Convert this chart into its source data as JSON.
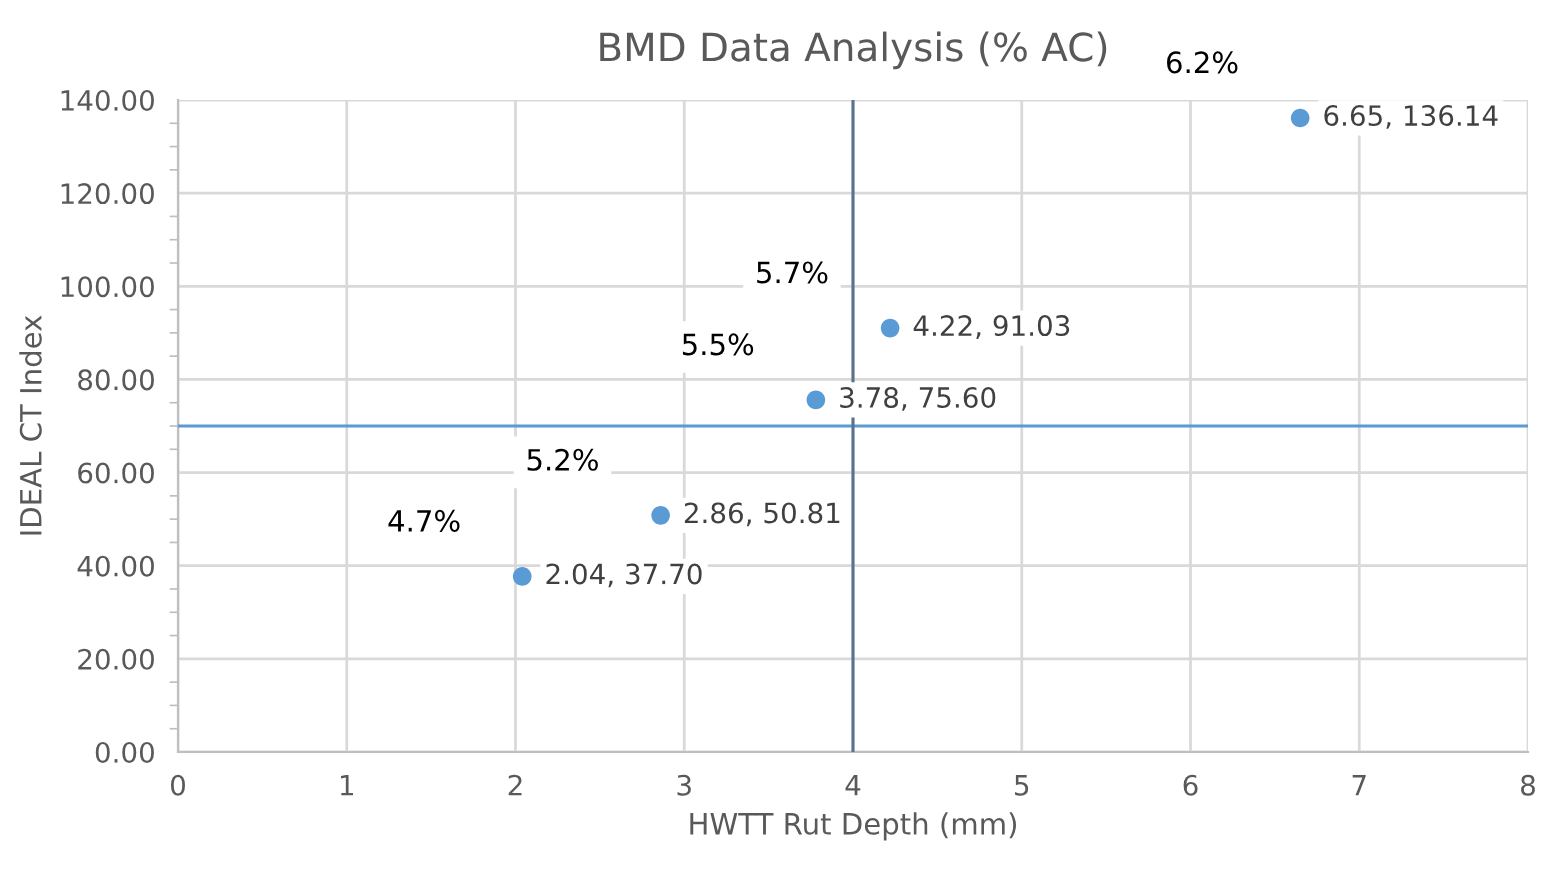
{
  "chart_data": {
    "type": "scatter",
    "title": "BMD Data Analysis (% AC)",
    "xlabel": "HWTT Rut Depth (mm)",
    "ylabel": "IDEAL CT Index",
    "x": [
      2.04,
      2.86,
      3.78,
      4.22,
      6.65
    ],
    "series": [
      {
        "color": "#5b9bd5",
        "values": [
          37.7,
          50.81,
          75.6,
          91.03,
          136.14
        ],
        "value_labels": [
          "2.04, 37.70",
          "2.86, 50.81",
          "3.78, 75.60",
          "4.22, 91.03",
          "6.65, 136.14"
        ]
      }
    ],
    "marker": "circle",
    "xlim": [
      0,
      8
    ],
    "xticks": [
      0,
      1,
      2,
      3,
      4,
      5,
      6,
      7,
      8
    ],
    "ylim": [
      0,
      140
    ],
    "yticks": [
      {
        "value": 0,
        "label": "0.00"
      },
      {
        "value": 20,
        "label": "20.00"
      },
      {
        "value": 40,
        "label": "40.00"
      },
      {
        "value": 60,
        "label": "60.00"
      },
      {
        "value": 80,
        "label": "80.00"
      },
      {
        "value": 100,
        "label": "100.00"
      },
      {
        "value": 120,
        "label": "120.00"
      },
      {
        "value": 140,
        "label": "140.00"
      }
    ],
    "grid": true,
    "legend": false,
    "ref_lines": [
      {
        "axis": "y",
        "value": 70,
        "color": "#5b9bd5"
      },
      {
        "axis": "x",
        "value": 4,
        "color": "#5a7190"
      }
    ],
    "annotations": [
      {
        "text": "4.7%",
        "x": 2.04,
        "y": 37.7
      },
      {
        "text": "5.2%",
        "x": 2.86,
        "y": 50.81
      },
      {
        "text": "5.5%",
        "x": 3.78,
        "y": 75.6
      },
      {
        "text": "5.7%",
        "x": 4.22,
        "y": 91.03
      },
      {
        "text": "6.2%",
        "x": 6.65,
        "y": 136.14
      }
    ]
  }
}
